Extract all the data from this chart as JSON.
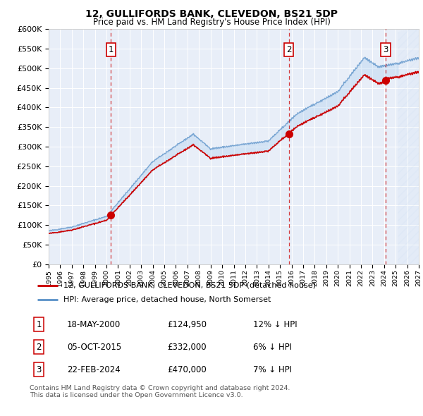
{
  "title": "12, GULLIFORDS BANK, CLEVEDON, BS21 5DP",
  "subtitle": "Price paid vs. HM Land Registry's House Price Index (HPI)",
  "legend_line1": "12, GULLIFORDS BANK, CLEVEDON, BS21 5DP (detached house)",
  "legend_line2": "HPI: Average price, detached house, North Somerset",
  "transactions": [
    {
      "num": 1,
      "date": "18-MAY-2000",
      "price": 124950,
      "pct": "12%",
      "dir": "↓"
    },
    {
      "num": 2,
      "date": "05-OCT-2015",
      "price": 332000,
      "pct": "6%",
      "dir": "↓"
    },
    {
      "num": 3,
      "date": "22-FEB-2024",
      "price": 470000,
      "pct": "7%",
      "dir": "↓"
    }
  ],
  "transaction_dates_decimal": [
    2000.38,
    2015.76,
    2024.14
  ],
  "footer": "Contains HM Land Registry data © Crown copyright and database right 2024.\nThis data is licensed under the Open Government Licence v3.0.",
  "xmin": 1995.0,
  "xmax": 2027.0,
  "ymin": 0,
  "ymax": 600000,
  "yticks": [
    0,
    50000,
    100000,
    150000,
    200000,
    250000,
    300000,
    350000,
    400000,
    450000,
    500000,
    550000,
    600000
  ],
  "white_bg": "#ffffff",
  "plot_bg": "#e8eef8",
  "red_color": "#cc0000",
  "blue_color": "#6699cc",
  "fill_alpha": 0.35,
  "hatch_start": 2025.2
}
